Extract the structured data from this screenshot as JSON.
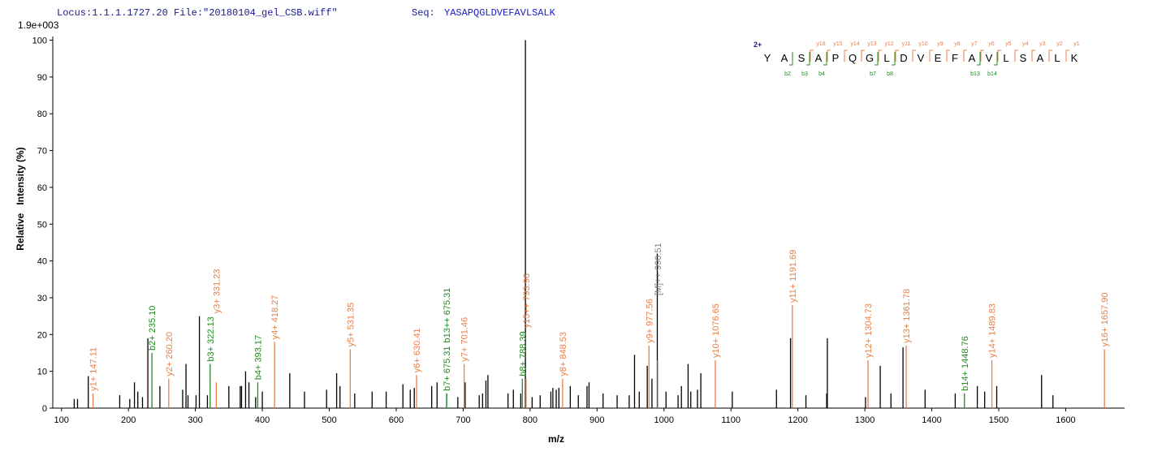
{
  "chart_data": {
    "type": "spectrum",
    "header": "Locus:1.1.1.1727.20 File:\"20180104_gel_CSB.wiff\"",
    "seq_label": "Seq:",
    "seq": "YASAPQGLDVEFAVLSALK",
    "scale_label": "1.9e+003",
    "y_label": "Relative   Intensity (%)",
    "x_label": "m/z",
    "xlim": [
      87,
      1688
    ],
    "ylim": [
      0,
      101
    ],
    "xticks": [
      100,
      200,
      300,
      400,
      500,
      600,
      700,
      800,
      900,
      1000,
      1100,
      1200,
      1300,
      1400,
      1500,
      1600
    ],
    "yticks": [
      0,
      10,
      20,
      30,
      40,
      50,
      60,
      70,
      80,
      90,
      100
    ],
    "peaks": {
      "color": "#000000",
      "x": [
        119,
        124,
        140,
        187,
        202,
        209,
        214,
        221,
        229,
        247,
        281,
        286,
        289,
        301,
        306,
        318,
        350,
        367,
        369,
        375,
        380,
        390,
        400,
        441,
        463,
        496,
        511,
        516,
        538,
        564,
        585,
        610,
        621,
        627,
        653,
        661,
        692,
        703,
        724,
        729,
        734,
        737,
        767,
        775,
        786,
        793,
        803,
        815,
        831,
        834,
        839,
        843,
        860,
        872,
        885,
        888,
        909,
        930,
        948,
        956,
        963,
        975,
        982,
        990,
        1003,
        1021,
        1026,
        1036,
        1040,
        1050,
        1055,
        1102,
        1168,
        1189,
        1212,
        1243,
        1244,
        1301,
        1323,
        1339,
        1357,
        1390,
        1435,
        1468,
        1479,
        1497,
        1564,
        1581
      ],
      "values": [
        2.5,
        2.5,
        8.7,
        3.5,
        2.5,
        7,
        4.5,
        3,
        19,
        6,
        5,
        12,
        3.5,
        3.5,
        25,
        3.5,
        6,
        6,
        6,
        10,
        7,
        3,
        4.5,
        9.5,
        4.5,
        5,
        9.5,
        6,
        4,
        4.5,
        4.5,
        6.5,
        5,
        5.5,
        6,
        7,
        3,
        7,
        3.5,
        4,
        7.5,
        9,
        4,
        5,
        4,
        100,
        3,
        3.5,
        4.5,
        5.5,
        5,
        5.5,
        6,
        3.5,
        6,
        7,
        4,
        3.5,
        3.5,
        14.5,
        4.5,
        11.5,
        8,
        42,
        4.5,
        3.5,
        6,
        12,
        4.5,
        5,
        9.5,
        4.5,
        5,
        19,
        3.5,
        4,
        19,
        3,
        11.5,
        4,
        16.5,
        5,
        4,
        6,
        4.5,
        6,
        9,
        3.5
      ]
    },
    "annotations": [
      {
        "label": "y1+ 147.11",
        "x": 147.11,
        "value": 4,
        "color": "#e8804a"
      },
      {
        "label": "b2+ 235.10",
        "x": 235.1,
        "value": 15,
        "color": "#1e8c1e"
      },
      {
        "label": "y2+ 260.20",
        "x": 260.2,
        "value": 8,
        "color": "#e8804a"
      },
      {
        "label": "b3+ 322.13",
        "x": 322.13,
        "value": 12,
        "color": "#1e8c1e"
      },
      {
        "label": "y3+ 331.23",
        "x": 331.23,
        "value": 7,
        "color": "#e8804a"
      },
      {
        "label": "b4+ 393.17",
        "x": 393.17,
        "value": 7,
        "color": "#1e8c1e"
      },
      {
        "label": "y4+ 418.27",
        "x": 418.27,
        "value": 18,
        "color": "#e8804a"
      },
      {
        "label": "y5+ 531.35",
        "x": 531.35,
        "value": 16,
        "color": "#e8804a"
      },
      {
        "label": "y6+ 630.41",
        "x": 630.41,
        "value": 9,
        "color": "#e8804a"
      },
      {
        "label": "b7+ 675.31",
        "x": 675.31,
        "value": 4,
        "color": "#1e8c1e"
      },
      {
        "label": "b13++ 675.31",
        "x": 675.31,
        "value": 4,
        "color": "#1e8c1e"
      },
      {
        "label": "y7+ 701.46",
        "x": 701.46,
        "value": 12,
        "color": "#e8804a"
      },
      {
        "label": "b8+ 788.39",
        "x": 788.39,
        "value": 8,
        "color": "#1e8c1e"
      },
      {
        "label": "y15++ 793.96",
        "x": 793.96,
        "value": 8,
        "color": "#e8804a"
      },
      {
        "label": "y8+ 848.53",
        "x": 848.53,
        "value": 8,
        "color": "#e8804a"
      },
      {
        "label": "y9+ 977.56",
        "x": 977.56,
        "value": 17,
        "color": "#e8804a"
      },
      {
        "label": "[M]++ 990.51",
        "x": 990.51,
        "value": 13,
        "color": "#808080"
      },
      {
        "label": "y10+ 1076.65",
        "x": 1076.65,
        "value": 13,
        "color": "#e8804a"
      },
      {
        "label": "y11+ 1191.69",
        "x": 1191.69,
        "value": 28,
        "color": "#e8804a"
      },
      {
        "label": "y12+ 1304.73",
        "x": 1304.73,
        "value": 13,
        "color": "#e8804a"
      },
      {
        "label": "y13+ 1361.78",
        "x": 1361.78,
        "value": 17,
        "color": "#e8804a"
      },
      {
        "label": "b14+ 1448.76",
        "x": 1448.76,
        "value": 4,
        "color": "#1e8c1e"
      },
      {
        "label": "y14+ 1489.83",
        "x": 1489.83,
        "value": 13,
        "color": "#e8804a"
      },
      {
        "label": "y16+ 1657.90",
        "x": 1657.9,
        "value": 16,
        "color": "#e8804a"
      }
    ],
    "fragment_map": {
      "charge": "2+",
      "residues": [
        "Y",
        "A",
        "S",
        "A",
        "P",
        "Q",
        "G",
        "L",
        "D",
        "V",
        "E",
        "F",
        "A",
        "V",
        "L",
        "S",
        "A",
        "L",
        "K"
      ],
      "y_ions": [
        null,
        null,
        null,
        "y18",
        "y15",
        "y14",
        "y13",
        "y12",
        "y11",
        "y10",
        "y9",
        "y8",
        "y7",
        "y6",
        "y5",
        "y4",
        "y3",
        "y2",
        "y1"
      ],
      "b_ions": [
        null,
        "b2",
        "b3",
        "b4",
        null,
        null,
        "b7",
        "b8",
        null,
        null,
        null,
        null,
        "b13",
        "b14",
        null,
        null,
        null,
        null,
        null
      ],
      "y_color": "#e8804a",
      "b_color": "#1e8c1e"
    }
  }
}
